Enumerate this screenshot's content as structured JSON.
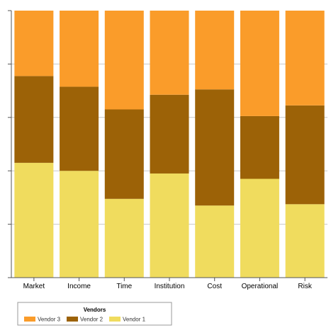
{
  "chart_data": {
    "type": "bar",
    "stacked": true,
    "normalized": true,
    "categories": [
      "Market",
      "Income",
      "Time",
      "Institution",
      "Cost",
      "Operational",
      "Risk"
    ],
    "series": [
      {
        "name": "Vendor 1",
        "color": "#F0DC5E",
        "values": [
          43,
          40,
          29.5,
          39,
          27,
          37,
          27.5
        ]
      },
      {
        "name": "Vendor 2",
        "color": "#9C6207",
        "values": [
          32.5,
          31.5,
          33.5,
          29.5,
          43.5,
          23.5,
          37
        ]
      },
      {
        "name": "Vendor 3",
        "color": "#FA9C2A",
        "values": [
          24.5,
          28.5,
          37,
          31.5,
          29.5,
          39.5,
          35.5
        ]
      }
    ],
    "ylim": [
      0,
      100
    ],
    "grid": true,
    "y_tick_labels_shown": false,
    "legend": {
      "title": "Vendors",
      "placement": "bottom-left",
      "order": [
        "Vendor 3",
        "Vendor 2",
        "Vendor 1"
      ]
    }
  }
}
